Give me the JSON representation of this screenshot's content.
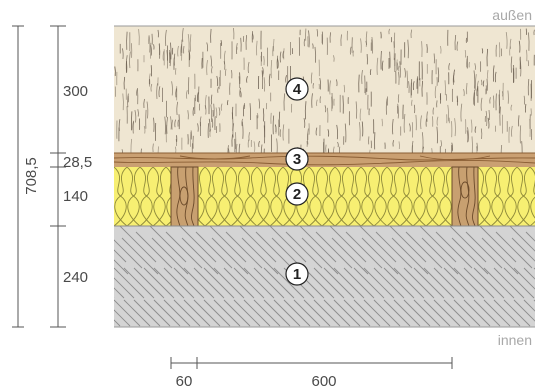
{
  "labels": {
    "outside": "außen",
    "inside": "innen"
  },
  "dimensions": {
    "total": "708,5",
    "layer_wood_fibre": "300",
    "layer_board": "28,5",
    "layer_insulation": "140",
    "layer_concrete": "240",
    "spacing_stud": "60",
    "spacing_field": "600"
  },
  "layers": [
    {
      "number": "4",
      "material": "wood-fibre",
      "color": "#efe6d2"
    },
    {
      "number": "3",
      "material": "timber-board",
      "color": "#caa072"
    },
    {
      "number": "2",
      "material": "mineral-wool",
      "color": "#f7ef72"
    },
    {
      "number": "1",
      "material": "concrete",
      "color": "#d4d4d4"
    }
  ]
}
